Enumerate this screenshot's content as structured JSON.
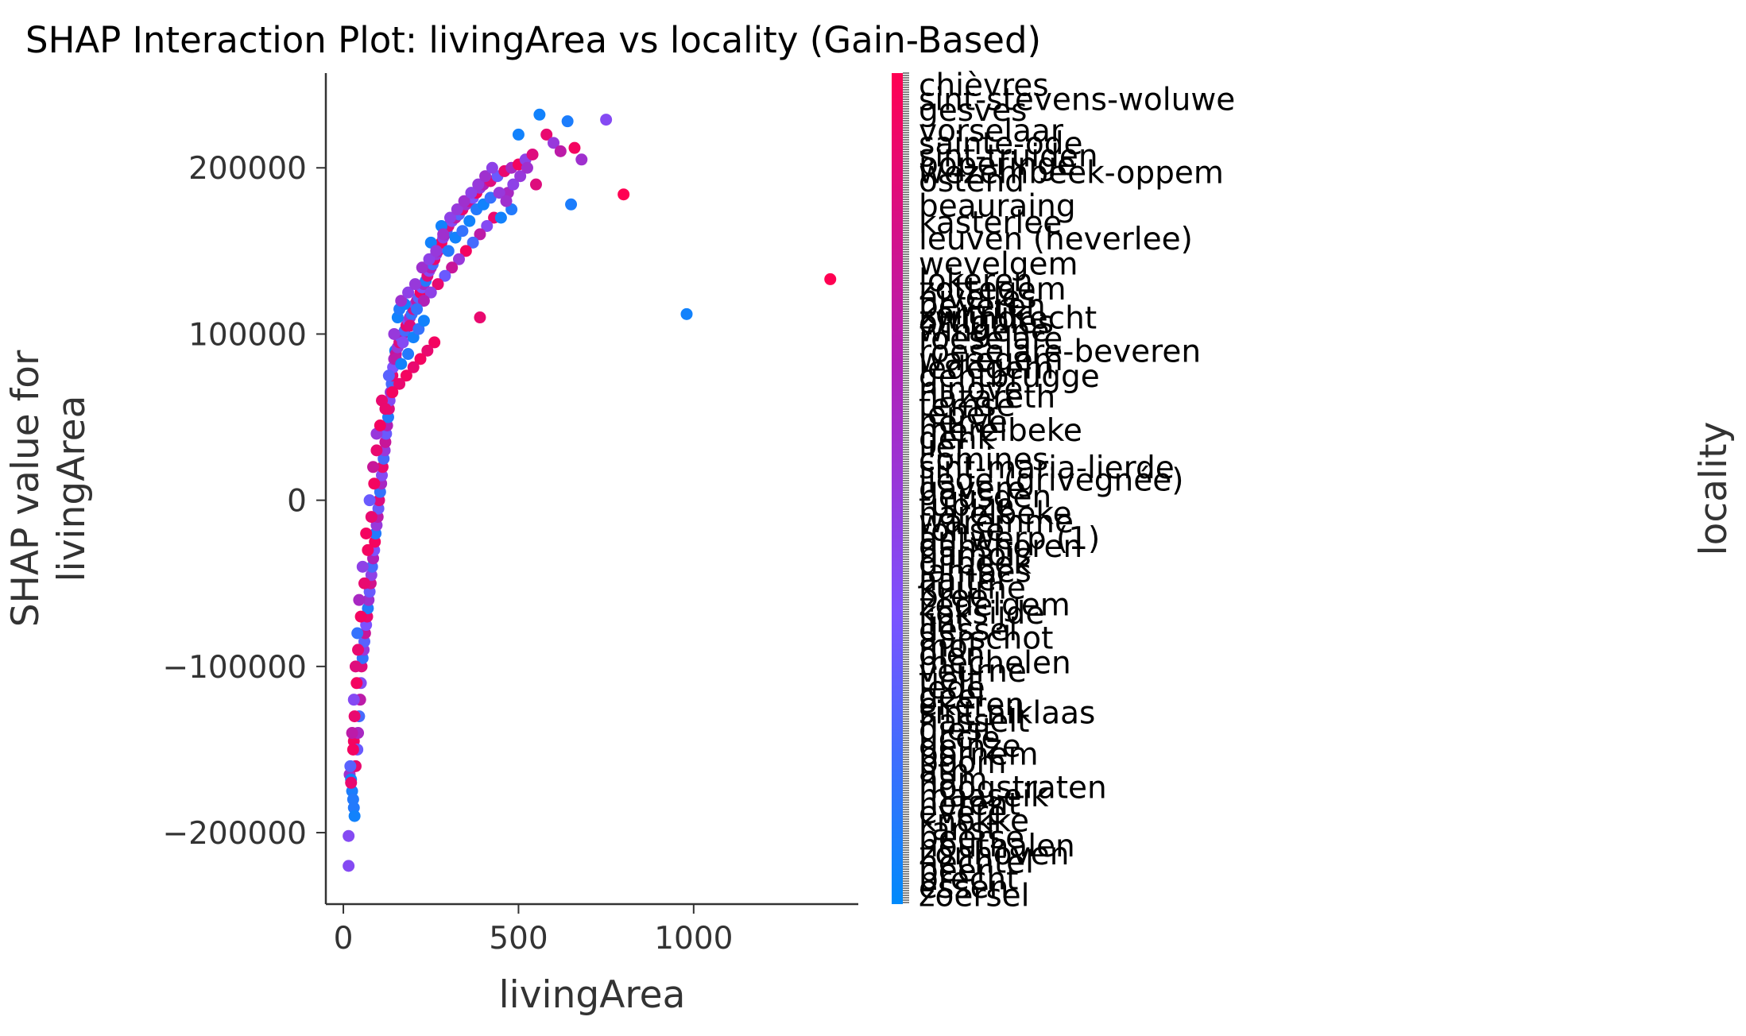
{
  "chart_data": {
    "type": "scatter",
    "title": "SHAP Interaction Plot: livingArea vs locality (Gain-Based)",
    "xlabel": "livingArea",
    "ylabel": [
      "SHAP value for",
      "livingArea"
    ],
    "xlim": [
      -50,
      1470
    ],
    "ylim": [
      -243000,
      257000
    ],
    "xticks": [
      0,
      500,
      1000
    ],
    "xtick_labels": [
      "0",
      "500",
      "1000"
    ],
    "yticks": [
      -200000,
      -100000,
      0,
      100000,
      200000
    ],
    "ytick_labels": [
      "−200000",
      "−100000",
      "0",
      "100000",
      "200000"
    ],
    "colorbar": {
      "label": "locality",
      "colormap": [
        "#008afb",
        "#7c52ff",
        "#b11fb6",
        "#ff0052"
      ],
      "visible_labels": [
        {
          "text": "chièvres",
          "pos": 0.985
        },
        {
          "text": "sint-stevens-woluwe",
          "pos": 0.968
        },
        {
          "text": "gesves",
          "pos": 0.955
        },
        {
          "text": "vorselaar",
          "pos": 0.93
        },
        {
          "text": "sainte-ode",
          "pos": 0.915
        },
        {
          "text": "sint-truiden",
          "pos": 0.9
        },
        {
          "text": "poperinge",
          "pos": 0.89
        },
        {
          "text": "wezembeek-oppem",
          "pos": 0.88
        },
        {
          "text": "ostend",
          "pos": 0.87
        },
        {
          "text": "beauraing",
          "pos": 0.84
        },
        {
          "text": "kasterlee",
          "pos": 0.82
        },
        {
          "text": "leuven (heverlee)",
          "pos": 0.8
        },
        {
          "text": "wevelgem",
          "pos": 0.77
        },
        {
          "text": "lokeren",
          "pos": 0.75
        },
        {
          "text": "zottegem",
          "pos": 0.74
        },
        {
          "text": "nivelles",
          "pos": 0.73
        },
        {
          "text": "beveren",
          "pos": 0.72
        },
        {
          "text": "kortrijk",
          "pos": 0.71
        },
        {
          "text": "zwijndrecht",
          "pos": 0.705
        },
        {
          "text": "ottignies",
          "pos": 0.7
        },
        {
          "text": "wingene",
          "pos": 0.69
        },
        {
          "text": "roeselare",
          "pos": 0.68
        },
        {
          "text": "roeselare-beveren",
          "pos": 0.665
        },
        {
          "text": "waregem",
          "pos": 0.655
        },
        {
          "text": "ledegem",
          "pos": 0.645
        },
        {
          "text": "gentbrugge",
          "pos": 0.635
        },
        {
          "text": "ninove",
          "pos": 0.62
        },
        {
          "text": "nazareth",
          "pos": 0.61
        },
        {
          "text": "temse",
          "pos": 0.6
        },
        {
          "text": "ieper",
          "pos": 0.59
        },
        {
          "text": "herve",
          "pos": 0.58
        },
        {
          "text": "merelbeke",
          "pos": 0.57
        },
        {
          "text": "genk",
          "pos": 0.56
        },
        {
          "text": "lier",
          "pos": 0.55
        },
        {
          "text": "comines",
          "pos": 0.535
        },
        {
          "text": "sint-maria-lierde",
          "pos": 0.525
        },
        {
          "text": "liège (grivegnée)",
          "pos": 0.51
        },
        {
          "text": "gavere",
          "pos": 0.5
        },
        {
          "text": "heusden",
          "pos": 0.49
        },
        {
          "text": "tubize",
          "pos": 0.48
        },
        {
          "text": "harelbeke",
          "pos": 0.47
        },
        {
          "text": "waremme",
          "pos": 0.46
        },
        {
          "text": "ronse",
          "pos": 0.45
        },
        {
          "text": "antwerp (1)",
          "pos": 0.44
        },
        {
          "text": "ganshoren",
          "pos": 0.43
        },
        {
          "text": "hamois",
          "pos": 0.42
        },
        {
          "text": "dilbeek",
          "pos": 0.41
        },
        {
          "text": "jambes",
          "pos": 0.4
        },
        {
          "text": "aalter",
          "pos": 0.39
        },
        {
          "text": "kuurne",
          "pos": 0.38
        },
        {
          "text": "bree",
          "pos": 0.37
        },
        {
          "text": "zedelgem",
          "pos": 0.36
        },
        {
          "text": "koksijde",
          "pos": 0.35
        },
        {
          "text": "lint",
          "pos": 0.34
        },
        {
          "text": "dessel",
          "pos": 0.33
        },
        {
          "text": "aarschot",
          "pos": 0.32
        },
        {
          "text": "mol",
          "pos": 0.31
        },
        {
          "text": "olen",
          "pos": 0.3
        },
        {
          "text": "mechelen",
          "pos": 0.29
        },
        {
          "text": "veurne",
          "pos": 0.28
        },
        {
          "text": "tielt",
          "pos": 0.27
        },
        {
          "text": "lede",
          "pos": 0.26
        },
        {
          "text": "geel",
          "pos": 0.25
        },
        {
          "text": "ekeren",
          "pos": 0.24
        },
        {
          "text": "sint-niklaas",
          "pos": 0.23
        },
        {
          "text": "hasselt",
          "pos": 0.22
        },
        {
          "text": "diest",
          "pos": 0.21
        },
        {
          "text": "uccle",
          "pos": 0.2
        },
        {
          "text": "deinze",
          "pos": 0.19
        },
        {
          "text": "bornem",
          "pos": 0.18
        },
        {
          "text": "boom",
          "pos": 0.17
        },
        {
          "text": "ath",
          "pos": 0.16
        },
        {
          "text": "ham",
          "pos": 0.15
        },
        {
          "text": "hoogstraten",
          "pos": 0.14
        },
        {
          "text": "maaseik",
          "pos": 0.13
        },
        {
          "text": "herent",
          "pos": 0.12
        },
        {
          "text": "evere",
          "pos": 0.11
        },
        {
          "text": "knokke",
          "pos": 0.1
        },
        {
          "text": "ranst",
          "pos": 0.09
        },
        {
          "text": "beerse",
          "pos": 0.08
        },
        {
          "text": "houthalen",
          "pos": 0.07
        },
        {
          "text": "zonhoven",
          "pos": 0.06
        },
        {
          "text": "hechtel",
          "pos": 0.05
        },
        {
          "text": "peer",
          "pos": 0.04
        },
        {
          "text": "brecht",
          "pos": 0.03
        },
        {
          "text": "essen",
          "pos": 0.02
        },
        {
          "text": "zoersel",
          "pos": 0.01
        }
      ]
    },
    "points": [
      [
        15,
        -220000,
        0.4
      ],
      [
        15,
        -202000,
        0.4
      ],
      [
        18,
        -165000,
        0.55
      ],
      [
        22,
        -168000,
        0.05
      ],
      [
        25,
        -175000,
        0.08
      ],
      [
        28,
        -180000,
        0.1
      ],
      [
        30,
        -185000,
        0.1
      ],
      [
        32,
        -190000,
        0.05
      ],
      [
        35,
        -160000,
        0.9
      ],
      [
        30,
        -145000,
        0.95
      ],
      [
        40,
        -150000,
        0.3
      ],
      [
        42,
        -140000,
        0.6
      ],
      [
        45,
        -130000,
        0.2
      ],
      [
        48,
        -120000,
        0.7
      ],
      [
        50,
        -110000,
        0.4
      ],
      [
        52,
        -100000,
        0.85
      ],
      [
        55,
        -95000,
        0.15
      ],
      [
        58,
        -90000,
        0.5
      ],
      [
        60,
        -85000,
        0.25
      ],
      [
        62,
        -80000,
        0.75
      ],
      [
        65,
        -75000,
        0.35
      ],
      [
        68,
        -70000,
        0.9
      ],
      [
        70,
        -65000,
        0.1
      ],
      [
        72,
        -60000,
        0.55
      ],
      [
        75,
        -55000,
        0.3
      ],
      [
        78,
        -50000,
        0.8
      ],
      [
        80,
        -45000,
        0.45
      ],
      [
        82,
        -40000,
        0.2
      ],
      [
        85,
        -35000,
        0.65
      ],
      [
        88,
        -30000,
        0.35
      ],
      [
        90,
        -25000,
        0.95
      ],
      [
        92,
        -20000,
        0.1
      ],
      [
        95,
        -15000,
        0.5
      ],
      [
        98,
        -10000,
        0.7
      ],
      [
        100,
        -5000,
        0.3
      ],
      [
        102,
        0,
        0.85
      ],
      [
        105,
        5000,
        0.15
      ],
      [
        108,
        10000,
        0.6
      ],
      [
        110,
        15000,
        0.4
      ],
      [
        112,
        20000,
        0.9
      ],
      [
        115,
        25000,
        0.2
      ],
      [
        118,
        30000,
        0.5
      ],
      [
        120,
        35000,
        0.75
      ],
      [
        122,
        40000,
        0.3
      ],
      [
        125,
        45000,
        0.65
      ],
      [
        128,
        50000,
        0.1
      ],
      [
        130,
        55000,
        0.85
      ],
      [
        132,
        60000,
        0.4
      ],
      [
        135,
        65000,
        0.55
      ],
      [
        138,
        70000,
        0.2
      ],
      [
        140,
        75000,
        0.9
      ],
      [
        142,
        80000,
        0.35
      ],
      [
        145,
        85000,
        0.6
      ],
      [
        148,
        90000,
        0.05
      ],
      [
        150,
        88000,
        0.75
      ],
      [
        155,
        92000,
        0.5
      ],
      [
        160,
        95000,
        0.85
      ],
      [
        165,
        98000,
        0.3
      ],
      [
        170,
        100000,
        0.65
      ],
      [
        175,
        102000,
        0.2
      ],
      [
        180,
        105000,
        0.9
      ],
      [
        185,
        108000,
        0.4
      ],
      [
        190,
        110000,
        0.55
      ],
      [
        195,
        112000,
        0.15
      ],
      [
        200,
        115000,
        0.8
      ],
      [
        205,
        118000,
        0.45
      ],
      [
        210,
        120000,
        0.7
      ],
      [
        215,
        122000,
        0.25
      ],
      [
        220,
        125000,
        0.95
      ],
      [
        225,
        128000,
        0.35
      ],
      [
        230,
        130000,
        0.6
      ],
      [
        235,
        132000,
        0.1
      ],
      [
        240,
        135000,
        0.85
      ],
      [
        245,
        138000,
        0.4
      ],
      [
        250,
        140000,
        0.65
      ],
      [
        255,
        142000,
        0.2
      ],
      [
        260,
        145000,
        0.9
      ],
      [
        265,
        148000,
        0.5
      ],
      [
        270,
        150000,
        0.75
      ],
      [
        275,
        152000,
        0.3
      ],
      [
        280,
        155000,
        0.95
      ],
      [
        285,
        158000,
        0.45
      ],
      [
        290,
        160000,
        0.6
      ],
      [
        295,
        162000,
        0.15
      ],
      [
        300,
        165000,
        0.85
      ],
      [
        310,
        168000,
        0.4
      ],
      [
        320,
        170000,
        0.7
      ],
      [
        330,
        172000,
        0.25
      ],
      [
        340,
        175000,
        0.9
      ],
      [
        350,
        178000,
        0.55
      ],
      [
        360,
        180000,
        0.8
      ],
      [
        370,
        182000,
        0.35
      ],
      [
        380,
        185000,
        0.95
      ],
      [
        390,
        188000,
        0.5
      ],
      [
        400,
        190000,
        0.65
      ],
      [
        420,
        192000,
        0.85
      ],
      [
        440,
        195000,
        0.3
      ],
      [
        460,
        198000,
        0.9
      ],
      [
        480,
        200000,
        0.6
      ],
      [
        500,
        202000,
        0.95
      ],
      [
        520,
        205000,
        0.45
      ],
      [
        540,
        208000,
        0.85
      ],
      [
        560,
        232000,
        0.05
      ],
      [
        580,
        220000,
        0.9
      ],
      [
        600,
        215000,
        0.5
      ],
      [
        620,
        210000,
        0.7
      ],
      [
        640,
        228000,
        0.08
      ],
      [
        650,
        178000,
        0.08
      ],
      [
        660,
        212000,
        0.95
      ],
      [
        680,
        205000,
        0.55
      ],
      [
        750,
        229000,
        0.4
      ],
      [
        800,
        184000,
        1.0
      ],
      [
        980,
        112000,
        0.05
      ],
      [
        1390,
        133000,
        1.0
      ],
      [
        500,
        220000,
        0.05
      ],
      [
        550,
        190000,
        0.85
      ],
      [
        470,
        185000,
        0.6
      ],
      [
        430,
        170000,
        0.9
      ],
      [
        410,
        165000,
        0.4
      ],
      [
        390,
        160000,
        0.7
      ],
      [
        370,
        155000,
        0.2
      ],
      [
        350,
        150000,
        0.95
      ],
      [
        330,
        145000,
        0.5
      ],
      [
        310,
        140000,
        0.75
      ],
      [
        290,
        135000,
        0.3
      ],
      [
        270,
        130000,
        0.9
      ],
      [
        250,
        125000,
        0.45
      ],
      [
        230,
        120000,
        0.65
      ],
      [
        210,
        115000,
        0.15
      ],
      [
        190,
        105000,
        0.85
      ],
      [
        170,
        95000,
        0.4
      ],
      [
        150,
        85000,
        0.7
      ],
      [
        130,
        75000,
        0.25
      ],
      [
        110,
        60000,
        0.9
      ],
      [
        95,
        40000,
        0.5
      ],
      [
        85,
        20000,
        0.75
      ],
      [
        75,
        0,
        0.3
      ],
      [
        65,
        -20000,
        0.95
      ],
      [
        55,
        -40000,
        0.45
      ],
      [
        45,
        -60000,
        0.6
      ],
      [
        40,
        -80000,
        0.15
      ],
      [
        35,
        -100000,
        0.85
      ],
      [
        30,
        -120000,
        0.4
      ],
      [
        25,
        -140000,
        0.7
      ],
      [
        20,
        -160000,
        0.25
      ],
      [
        155,
        110000,
        0.05
      ],
      [
        160,
        115000,
        0.1
      ],
      [
        165,
        82000,
        0.05
      ],
      [
        175,
        118000,
        0.05
      ],
      [
        185,
        88000,
        0.1
      ],
      [
        200,
        98000,
        0.05
      ],
      [
        215,
        103000,
        0.15
      ],
      [
        230,
        108000,
        0.05
      ],
      [
        250,
        155000,
        0.05
      ],
      [
        280,
        165000,
        0.05
      ],
      [
        300,
        150000,
        0.1
      ],
      [
        320,
        158000,
        0.05
      ],
      [
        340,
        162000,
        0.15
      ],
      [
        360,
        168000,
        0.05
      ],
      [
        380,
        175000,
        0.1
      ],
      [
        400,
        178000,
        0.05
      ],
      [
        420,
        182000,
        0.15
      ],
      [
        450,
        170000,
        0.05
      ],
      [
        480,
        175000,
        0.1
      ],
      [
        390,
        110000,
        0.9
      ],
      [
        260,
        95000,
        0.95
      ],
      [
        240,
        90000,
        0.9
      ],
      [
        220,
        85000,
        0.95
      ],
      [
        200,
        80000,
        0.9
      ],
      [
        180,
        75000,
        0.95
      ],
      [
        160,
        70000,
        0.9
      ],
      [
        140,
        65000,
        0.95
      ],
      [
        120,
        55000,
        0.9
      ],
      [
        105,
        45000,
        0.95
      ],
      [
        95,
        30000,
        0.9
      ],
      [
        88,
        10000,
        0.95
      ],
      [
        80,
        -10000,
        0.9
      ],
      [
        70,
        -30000,
        0.95
      ],
      [
        60,
        -50000,
        0.9
      ],
      [
        50,
        -70000,
        0.95
      ],
      [
        42,
        -90000,
        0.9
      ],
      [
        38,
        -110000,
        0.95
      ],
      [
        32,
        -130000,
        0.9
      ],
      [
        28,
        -150000,
        0.95
      ],
      [
        22,
        -170000,
        0.9
      ],
      [
        145,
        100000,
        0.5
      ],
      [
        165,
        120000,
        0.55
      ],
      [
        185,
        125000,
        0.45
      ],
      [
        205,
        130000,
        0.5
      ],
      [
        225,
        140000,
        0.55
      ],
      [
        245,
        145000,
        0.45
      ],
      [
        265,
        150000,
        0.5
      ],
      [
        285,
        160000,
        0.55
      ],
      [
        305,
        170000,
        0.45
      ],
      [
        325,
        175000,
        0.5
      ],
      [
        345,
        180000,
        0.55
      ],
      [
        365,
        185000,
        0.45
      ],
      [
        385,
        190000,
        0.5
      ],
      [
        405,
        195000,
        0.55
      ],
      [
        425,
        200000,
        0.45
      ],
      [
        445,
        185000,
        0.5
      ],
      [
        465,
        180000,
        0.55
      ],
      [
        485,
        190000,
        0.45
      ],
      [
        505,
        195000,
        0.5
      ],
      [
        525,
        200000,
        0.55
      ]
    ]
  }
}
